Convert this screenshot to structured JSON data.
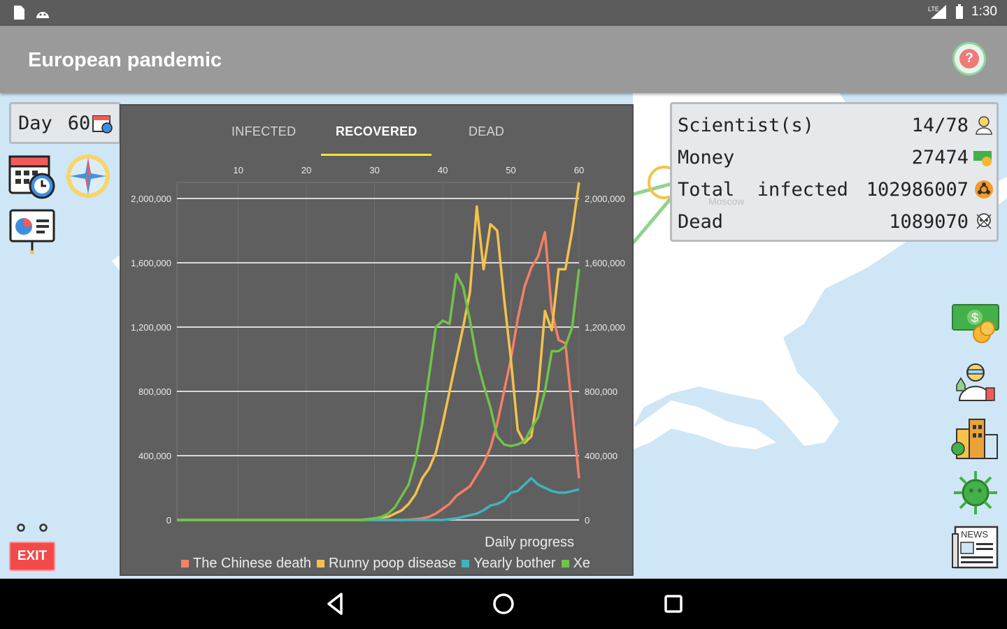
{
  "status_bar": {
    "time": "1:30",
    "network_label": "LTE"
  },
  "app_bar": {
    "title": "European pandemic",
    "help_icon_text": "?"
  },
  "day_box": {
    "label": "Day",
    "value": "60"
  },
  "chart": {
    "tabs": [
      {
        "label": "INFECTED",
        "active": false
      },
      {
        "label": "RECOVERED",
        "active": true
      },
      {
        "label": "DEAD",
        "active": false
      }
    ],
    "description": "Daily progress",
    "colors": {
      "panel_bg": "#5f5f5f",
      "grid": "#d9d9d9",
      "text": "#ececec",
      "active_tab_underline": "#f7e23a"
    }
  },
  "chart_data": {
    "type": "line",
    "title": "",
    "description": "Daily progress",
    "x_ticks": [
      10,
      20,
      30,
      40,
      50,
      60
    ],
    "xlim": [
      1,
      60
    ],
    "ylim": [
      0,
      2100000
    ],
    "y_ticks": [
      0,
      400000,
      800000,
      1200000,
      1600000,
      2000000
    ],
    "y_tick_labels": [
      "0",
      "400,000",
      "800,000",
      "1,200,000",
      "1,600,000",
      "2,000,000"
    ],
    "grid": true,
    "legend_position": "bottom",
    "x": [
      1,
      2,
      3,
      4,
      5,
      6,
      7,
      8,
      9,
      10,
      11,
      12,
      13,
      14,
      15,
      16,
      17,
      18,
      19,
      20,
      21,
      22,
      23,
      24,
      25,
      26,
      27,
      28,
      29,
      30,
      31,
      32,
      33,
      34,
      35,
      36,
      37,
      38,
      39,
      40,
      41,
      42,
      43,
      44,
      45,
      46,
      47,
      48,
      49,
      50,
      51,
      52,
      53,
      54,
      55,
      56,
      57,
      58,
      59,
      60
    ],
    "series": [
      {
        "name": "The Chinese death",
        "color": "#f48066",
        "values": [
          0,
          0,
          0,
          0,
          0,
          0,
          0,
          0,
          0,
          0,
          0,
          0,
          0,
          0,
          0,
          0,
          0,
          0,
          0,
          0,
          0,
          0,
          0,
          0,
          0,
          0,
          0,
          0,
          0,
          0,
          0,
          0,
          0,
          0,
          2000,
          5000,
          10000,
          20000,
          40000,
          70000,
          100000,
          150000,
          180000,
          210000,
          280000,
          350000,
          450000,
          600000,
          800000,
          1000000,
          1250000,
          1450000,
          1570000,
          1640000,
          1790000,
          1300000,
          1120000,
          1100000,
          680000,
          260000
        ]
      },
      {
        "name": "Runny poop disease",
        "color": "#f4c24c",
        "values": [
          0,
          0,
          0,
          0,
          0,
          0,
          0,
          0,
          0,
          0,
          0,
          0,
          0,
          0,
          0,
          0,
          0,
          0,
          0,
          0,
          0,
          0,
          0,
          0,
          0,
          0,
          0,
          0,
          5000,
          10000,
          15000,
          20000,
          40000,
          60000,
          100000,
          160000,
          260000,
          320000,
          420000,
          600000,
          800000,
          1000000,
          1200000,
          1420000,
          1950000,
          1560000,
          1840000,
          1800000,
          1380000,
          1000000,
          560000,
          480000,
          520000,
          800000,
          1300000,
          1180000,
          1560000,
          1560000,
          1800000,
          2100000
        ]
      },
      {
        "name": "Yearly bother",
        "color": "#3eb4bc",
        "values": [
          0,
          0,
          0,
          0,
          0,
          0,
          0,
          0,
          0,
          0,
          0,
          0,
          0,
          0,
          0,
          0,
          0,
          0,
          0,
          0,
          0,
          0,
          0,
          0,
          0,
          0,
          0,
          0,
          0,
          0,
          0,
          0,
          0,
          0,
          0,
          0,
          0,
          0,
          0,
          0,
          5000,
          10000,
          20000,
          30000,
          40000,
          60000,
          90000,
          100000,
          120000,
          170000,
          180000,
          220000,
          260000,
          220000,
          200000,
          180000,
          170000,
          170000,
          180000,
          190000
        ]
      },
      {
        "name": "Xe",
        "color": "#72c24a",
        "values": [
          0,
          0,
          0,
          0,
          0,
          0,
          0,
          0,
          0,
          0,
          0,
          0,
          0,
          0,
          0,
          0,
          0,
          0,
          0,
          0,
          0,
          0,
          0,
          0,
          0,
          0,
          0,
          0,
          5000,
          10000,
          20000,
          40000,
          80000,
          150000,
          220000,
          370000,
          600000,
          900000,
          1200000,
          1240000,
          1220000,
          1530000,
          1450000,
          1240000,
          1000000,
          840000,
          700000,
          520000,
          470000,
          460000,
          470000,
          490000,
          570000,
          640000,
          800000,
          1050000,
          1050000,
          1080000,
          1200000,
          1560000
        ]
      }
    ]
  },
  "stats": {
    "rows": [
      {
        "label": "Scientist(s)",
        "value": "14/78",
        "icon": "scientist-icon"
      },
      {
        "label": "Money",
        "value": "27474",
        "icon": "money-icon"
      },
      {
        "label": "Total  infected",
        "value": "102986007",
        "icon": "biohazard-icon"
      },
      {
        "label": "Dead",
        "value": "1089070",
        "icon": "skull-icon"
      }
    ],
    "map_city": "Moscow"
  },
  "left_toolbar": {
    "icons": [
      "calendar-clock-icon",
      "compass-icon",
      "presentation-chart-icon"
    ],
    "exit_label": "EXIT"
  },
  "right_toolbar": {
    "icons": [
      "money-coins-icon",
      "scientist-lab-icon",
      "city-buildings-icon",
      "virus-icon",
      "newspaper-icon"
    ],
    "news_label": "NEWS"
  },
  "nav_bar": {
    "icons": [
      "back-icon",
      "home-icon",
      "recents-icon"
    ]
  }
}
